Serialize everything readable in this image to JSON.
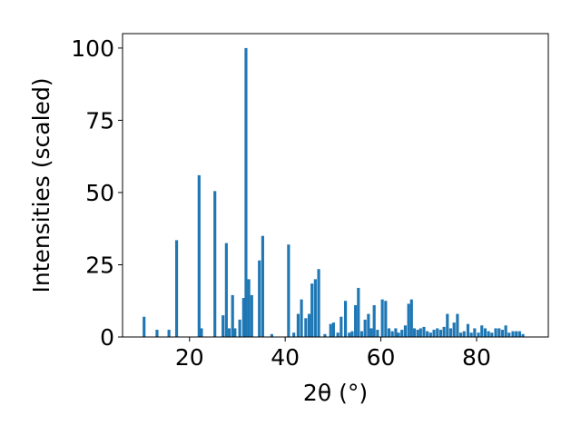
{
  "chart_data": {
    "type": "bar",
    "xlabel": "2θ (°)",
    "ylabel": "Intensities (scaled)",
    "xlim": [
      6.0,
      95.0
    ],
    "ylim": [
      0,
      105
    ],
    "xticks": [
      20,
      40,
      60,
      80
    ],
    "yticks": [
      0,
      25,
      50,
      75,
      100
    ],
    "grid": false,
    "bar_color": "#1f77b4",
    "bar_width": 0.6,
    "x": [
      10.5,
      13.2,
      15.7,
      17.3,
      22.0,
      22.5,
      25.3,
      27.0,
      27.7,
      28.3,
      29.0,
      29.5,
      30.5,
      31.3,
      31.8,
      32.4,
      33.0,
      34.6,
      35.3,
      37.2,
      40.7,
      41.8,
      42.7,
      43.4,
      44.3,
      45.0,
      45.6,
      46.3,
      47.0,
      48.3,
      49.5,
      50.1,
      51.0,
      51.7,
      52.6,
      53.4,
      54.0,
      54.7,
      55.3,
      56.0,
      56.7,
      57.4,
      58.0,
      58.6,
      59.3,
      60.3,
      61.0,
      61.7,
      62.4,
      63.1,
      63.7,
      64.4,
      65.1,
      65.8,
      66.4,
      67.0,
      67.7,
      68.3,
      69.0,
      69.7,
      70.4,
      71.1,
      71.8,
      72.5,
      73.2,
      73.9,
      74.6,
      75.3,
      76.0,
      76.7,
      77.4,
      78.2,
      78.9,
      79.6,
      80.4,
      81.1,
      81.8,
      82.5,
      83.2,
      84.0,
      84.7,
      85.4,
      86.1,
      86.8,
      87.6,
      88.3,
      89.0,
      89.7
    ],
    "values": [
      7.0,
      2.5,
      2.5,
      33.5,
      56.0,
      3.0,
      50.5,
      7.5,
      32.5,
      3.0,
      14.5,
      3.0,
      6.0,
      13.5,
      100.0,
      20.0,
      14.5,
      26.5,
      35.0,
      1.0,
      32.0,
      1.5,
      8.0,
      13.0,
      6.5,
      8.0,
      18.5,
      20.0,
      23.5,
      1.0,
      4.5,
      5.0,
      1.5,
      7.0,
      12.5,
      1.5,
      2.0,
      11.0,
      17.0,
      2.0,
      6.0,
      8.0,
      3.0,
      11.0,
      2.5,
      13.0,
      12.5,
      3.0,
      2.0,
      3.0,
      1.5,
      2.5,
      4.0,
      11.5,
      13.0,
      3.0,
      2.5,
      3.0,
      3.5,
      2.0,
      1.5,
      2.5,
      3.0,
      2.5,
      3.5,
      8.0,
      3.0,
      5.0,
      8.0,
      1.5,
      2.0,
      4.5,
      1.5,
      3.0,
      1.5,
      4.0,
      3.0,
      2.0,
      1.5,
      3.0,
      3.0,
      2.5,
      4.0,
      1.5,
      2.0,
      2.0,
      2.0,
      1.0
    ]
  }
}
